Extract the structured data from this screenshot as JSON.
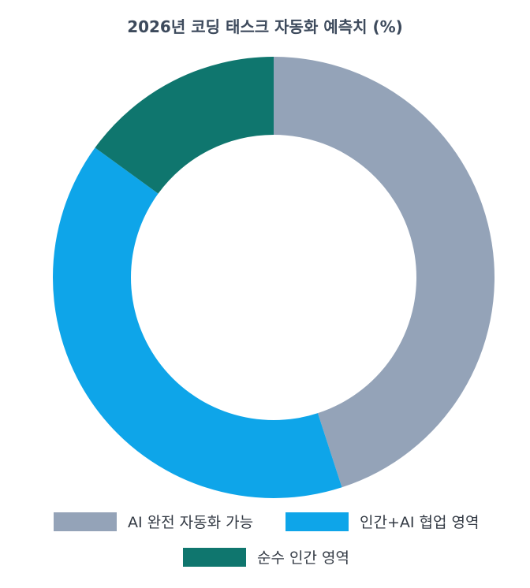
{
  "chart_data": {
    "type": "pie",
    "variant": "donut",
    "title": "2026년 코딩 태스크 자동화 예측치 (%)",
    "categories": [
      "AI 완전 자동화 가능",
      "인간+AI 협업 영역",
      "순수 인간 영역"
    ],
    "values": [
      45,
      40,
      15
    ],
    "colors": [
      "#94a3b8",
      "#0ea5e9",
      "#0f766e"
    ],
    "legend_position": "bottom"
  }
}
